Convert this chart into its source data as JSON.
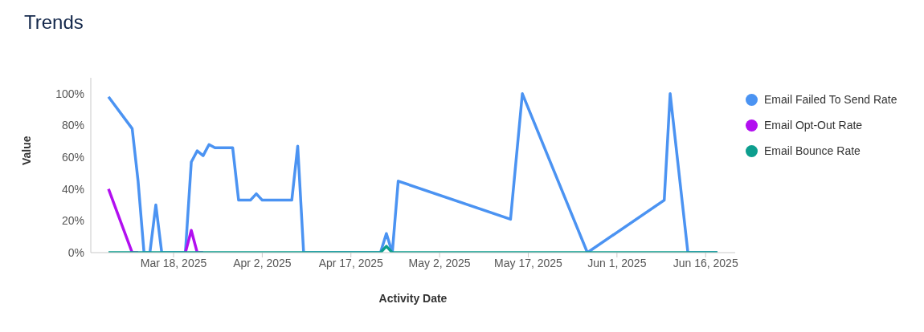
{
  "chart_data": {
    "type": "line",
    "title": "Trends",
    "xlabel": "Activity Date",
    "ylabel": "Value",
    "x": [
      "2025-03-07",
      "2025-03-11",
      "2025-03-12",
      "2025-03-13",
      "2025-03-14",
      "2025-03-15",
      "2025-03-16",
      "2025-03-20",
      "2025-03-21",
      "2025-03-22",
      "2025-03-23",
      "2025-03-24",
      "2025-03-25",
      "2025-03-28",
      "2025-03-29",
      "2025-03-31",
      "2025-04-01",
      "2025-04-02",
      "2025-04-07",
      "2025-04-08",
      "2025-04-09",
      "2025-04-22",
      "2025-04-23",
      "2025-04-24",
      "2025-04-25",
      "2025-05-14",
      "2025-05-16",
      "2025-05-27",
      "2025-06-09",
      "2025-06-10",
      "2025-06-13",
      "2025-06-18"
    ],
    "series": [
      {
        "name": "Email Failed To Send Rate",
        "color": "#4b93f2",
        "values": [
          98,
          78,
          45,
          0,
          0,
          30,
          0,
          0,
          57,
          64,
          61,
          68,
          66,
          66,
          33,
          33,
          37,
          33,
          33,
          67,
          0,
          0,
          12,
          0,
          45,
          21,
          100,
          0,
          33,
          100,
          0,
          0
        ]
      },
      {
        "name": "Email Opt-Out Rate",
        "color": "#b20ff0",
        "values": [
          40,
          0,
          0,
          null,
          null,
          null,
          null,
          0,
          14,
          0,
          0,
          null,
          null,
          null,
          null,
          null,
          null,
          null,
          null,
          null,
          null,
          null,
          null,
          null,
          null,
          null,
          null,
          null,
          null,
          null,
          null,
          null
        ]
      },
      {
        "name": "Email Bounce Rate",
        "color": "#0d9e8e",
        "values": [
          0,
          0,
          0,
          0,
          0,
          0,
          0,
          0,
          0,
          0,
          0,
          0,
          0,
          0,
          0,
          0,
          0,
          0,
          0,
          0,
          0,
          0,
          4,
          0,
          0,
          0,
          0,
          0,
          0,
          0,
          0,
          0
        ]
      }
    ],
    "xlim": [
      "2025-03-04",
      "2025-06-21"
    ],
    "xticks": [
      {
        "value": "2025-03-18",
        "label": "Mar 18, 2025"
      },
      {
        "value": "2025-04-02",
        "label": "Apr 2, 2025"
      },
      {
        "value": "2025-04-17",
        "label": "Apr 17, 2025"
      },
      {
        "value": "2025-05-02",
        "label": "May 2, 2025"
      },
      {
        "value": "2025-05-17",
        "label": "May 17, 2025"
      },
      {
        "value": "2025-06-01",
        "label": "Jun 1, 2025"
      },
      {
        "value": "2025-06-16",
        "label": "Jun 16, 2025"
      }
    ],
    "ylim": [
      0,
      110
    ],
    "yticks": [
      {
        "value": 0,
        "label": "0%"
      },
      {
        "value": 20,
        "label": "20%"
      },
      {
        "value": 40,
        "label": "40%"
      },
      {
        "value": 60,
        "label": "60%"
      },
      {
        "value": 80,
        "label": "80%"
      },
      {
        "value": 100,
        "label": "100%"
      }
    ],
    "grid": false,
    "legend": "right",
    "marker": "none",
    "line_style": "solid"
  }
}
